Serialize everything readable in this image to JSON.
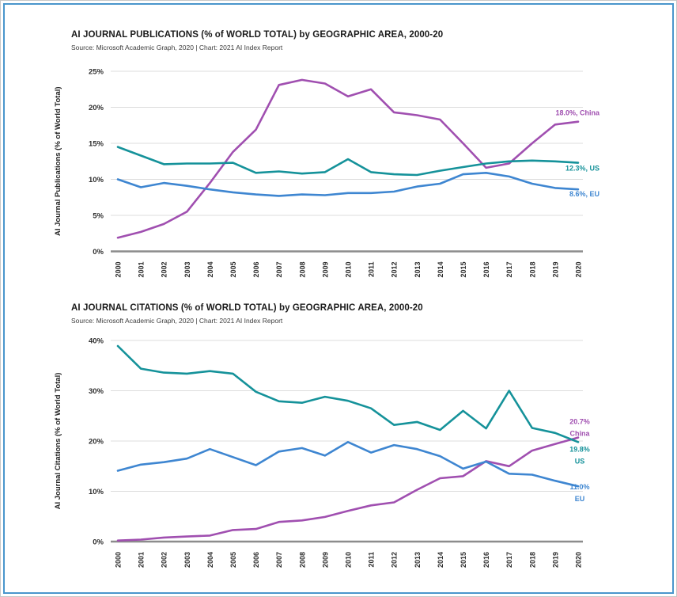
{
  "page": {
    "frame_color": "#4a96cc",
    "background": "#ffffff"
  },
  "chart_data": [
    {
      "type": "line",
      "title": "AI JOURNAL PUBLICATIONS (% of WORLD TOTAL) by GEOGRAPHIC AREA, 2000-20",
      "source": "Source: Microsoft Academic Graph, 2020 | Chart: 2021 AI Index Report",
      "ylabel": "AI Journal Publications (% of World Total)",
      "xlabel": "",
      "grid": true,
      "legend_position": "end-of-line-labels",
      "x": [
        2000,
        2001,
        2002,
        2003,
        2004,
        2005,
        2006,
        2007,
        2008,
        2009,
        2010,
        2011,
        2012,
        2013,
        2014,
        2015,
        2016,
        2017,
        2018,
        2019,
        2020
      ],
      "ylim": [
        0,
        25
      ],
      "ytick_step": 5,
      "ytick_labels": [
        "0%",
        "5%",
        "10%",
        "15%",
        "20%",
        "25%"
      ],
      "series": [
        {
          "name": "China",
          "color": "#a04fb0",
          "end_label": [
            "18.0%, China"
          ],
          "values": [
            1.9,
            2.7,
            3.8,
            5.5,
            9.5,
            13.8,
            16.9,
            23.1,
            23.8,
            23.3,
            21.5,
            22.5,
            19.3,
            18.9,
            18.3,
            15.0,
            11.6,
            12.2,
            15.0,
            17.6,
            18.0
          ]
        },
        {
          "name": "US",
          "color": "#15929a",
          "end_label": [
            "12.3%, US"
          ],
          "values": [
            14.5,
            13.3,
            12.1,
            12.2,
            12.2,
            12.3,
            10.9,
            11.1,
            10.8,
            11.0,
            12.8,
            11.0,
            10.7,
            10.6,
            11.2,
            11.7,
            12.2,
            12.5,
            12.6,
            12.5,
            12.3
          ]
        },
        {
          "name": "EU",
          "color": "#3e86d1",
          "end_label": [
            "8.6%, EU"
          ],
          "values": [
            10.0,
            8.9,
            9.5,
            9.1,
            8.6,
            8.2,
            7.9,
            7.7,
            7.9,
            7.8,
            8.1,
            8.1,
            8.3,
            9.0,
            9.4,
            10.7,
            10.9,
            10.4,
            9.4,
            8.8,
            8.6
          ]
        }
      ]
    },
    {
      "type": "line",
      "title": "AI JOURNAL CITATIONS (% of WORLD TOTAL) by GEOGRAPHIC AREA, 2000-20",
      "source": "Source: Microsoft Academic Graph, 2020 | Chart: 2021 AI Index Report",
      "ylabel": "AI Journal Citations (% of World Total)",
      "xlabel": "",
      "grid": true,
      "legend_position": "end-of-line-labels",
      "x": [
        2000,
        2001,
        2002,
        2003,
        2004,
        2005,
        2006,
        2007,
        2008,
        2009,
        2010,
        2011,
        2012,
        2013,
        2014,
        2015,
        2016,
        2017,
        2018,
        2019,
        2020
      ],
      "ylim": [
        0,
        40
      ],
      "ytick_step": 10,
      "ytick_labels": [
        "0%",
        "10%",
        "20%",
        "30%",
        "40%"
      ],
      "series": [
        {
          "name": "China",
          "color": "#a04fb0",
          "end_label": [
            "20.7%",
            "China"
          ],
          "values": [
            0.2,
            0.4,
            0.8,
            1.0,
            1.2,
            2.3,
            2.5,
            3.9,
            4.2,
            4.9,
            6.1,
            7.2,
            7.8,
            10.3,
            12.6,
            13.0,
            16.0,
            15.0,
            18.1,
            19.4,
            20.7
          ]
        },
        {
          "name": "US",
          "color": "#15929a",
          "end_label": [
            "19.8%",
            "US"
          ],
          "values": [
            38.9,
            34.4,
            33.6,
            33.4,
            33.9,
            33.4,
            29.8,
            27.9,
            27.6,
            28.8,
            28.0,
            26.5,
            23.2,
            23.8,
            22.2,
            26.0,
            22.5,
            30.0,
            22.6,
            21.6,
            19.8
          ]
        },
        {
          "name": "EU",
          "color": "#3e86d1",
          "end_label": [
            "11.0%",
            "EU"
          ],
          "values": [
            14.1,
            15.3,
            15.8,
            16.5,
            18.4,
            16.8,
            15.2,
            17.9,
            18.6,
            17.1,
            19.8,
            17.7,
            19.2,
            18.4,
            17.0,
            14.5,
            15.9,
            13.5,
            13.3,
            12.1,
            11.0
          ]
        }
      ]
    }
  ],
  "style": {
    "grid_color": "#dcdcdc",
    "axis_color": "#8c8c8c",
    "tick_label_color": "#2e2e2e"
  }
}
